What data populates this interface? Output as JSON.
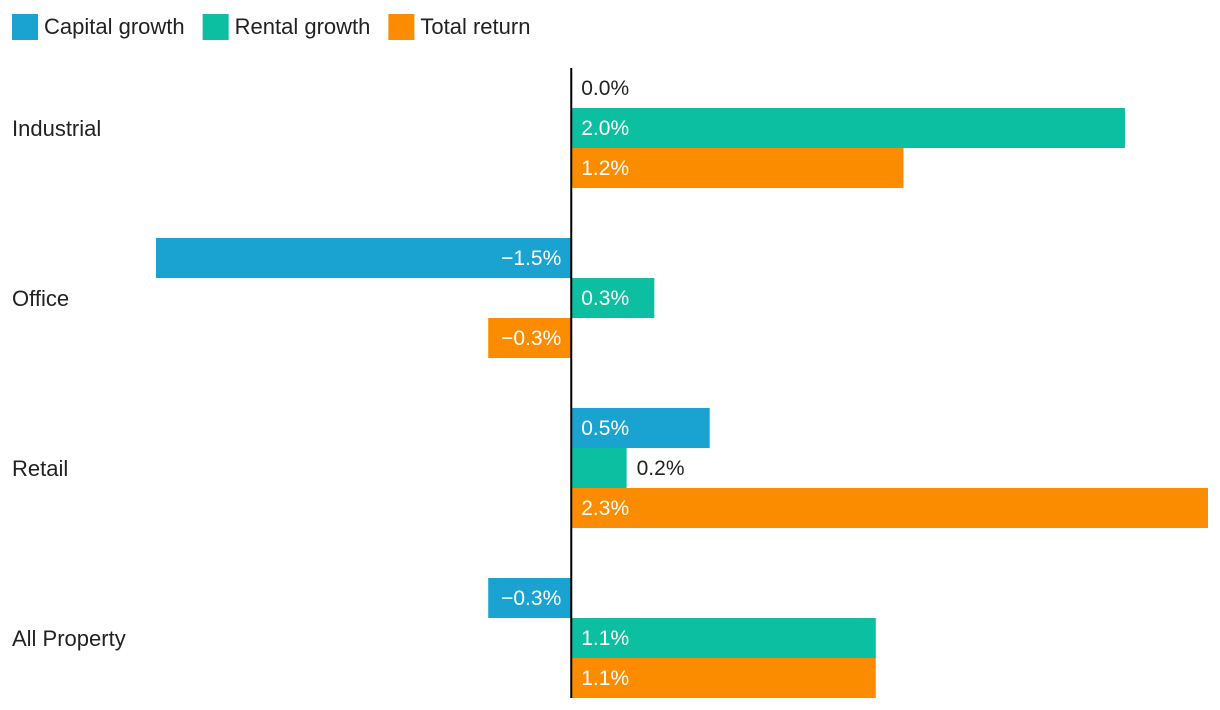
{
  "chart_data": {
    "type": "bar",
    "orientation": "horizontal",
    "categories": [
      "Industrial",
      "Office",
      "Retail",
      "All Property"
    ],
    "series": [
      {
        "name": "Capital growth",
        "color": "#1aa3d1",
        "values": [
          0.0,
          -1.5,
          0.5,
          -0.3
        ],
        "labels": [
          "0.0%",
          "−1.5%",
          "0.5%",
          "−0.3%"
        ]
      },
      {
        "name": "Rental growth",
        "color": "#0bbfa0",
        "values": [
          2.0,
          0.3,
          0.2,
          1.1
        ],
        "labels": [
          "2.0%",
          "0.3%",
          "0.2%",
          "1.1%"
        ]
      },
      {
        "name": "Total return",
        "color": "#fb8c00",
        "values": [
          1.2,
          -0.3,
          2.3,
          1.1
        ],
        "labels": [
          "1.2%",
          "−0.3%",
          "2.3%",
          "1.1%"
        ]
      }
    ],
    "xlim": [
      -1.5,
      2.3
    ],
    "legend_position": "top-left",
    "grid": false,
    "title": "",
    "xlabel": "",
    "ylabel": ""
  }
}
